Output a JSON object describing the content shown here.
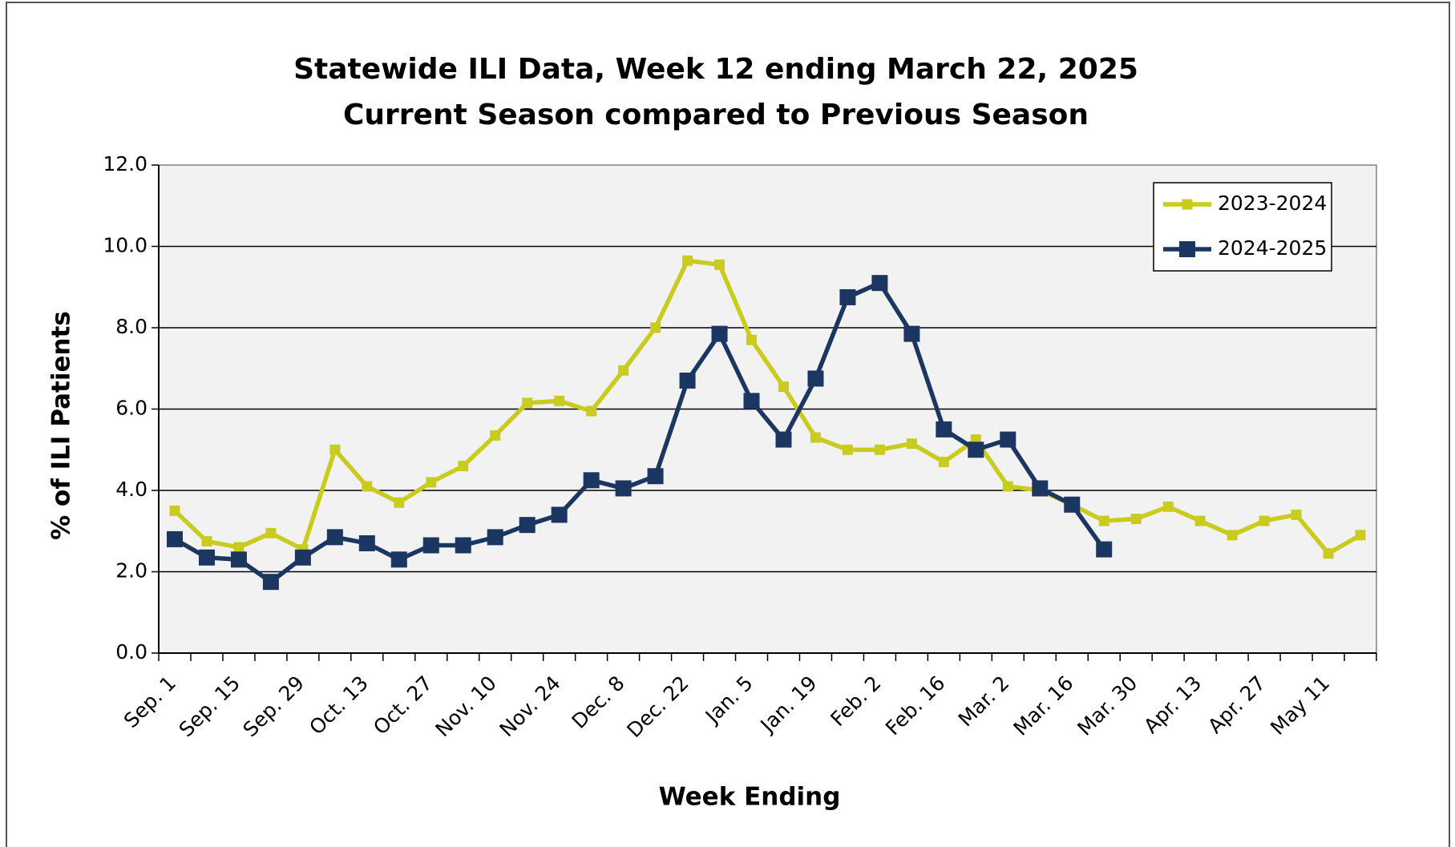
{
  "chart_data": {
    "type": "line",
    "title": [
      "Statewide ILI Data, Week 12 ending March 22, 2025",
      "Current Season compared to Previous Season"
    ],
    "x_label": "Week Ending",
    "y_label": "% of ILI Patients",
    "categories": [
      "Sep. 1",
      null,
      "Sep. 15",
      null,
      "Sep. 29",
      null,
      "Oct. 13",
      null,
      "Oct. 27",
      null,
      "Nov. 10",
      null,
      "Nov. 24",
      null,
      "Dec. 8",
      null,
      "Dec. 22",
      null,
      "Jan. 5",
      null,
      "Jan. 19",
      null,
      "Feb. 2",
      null,
      "Feb. 16",
      null,
      "Mar. 2",
      null,
      "Mar. 16",
      null,
      "Mar. 30",
      null,
      "Apr. 13",
      null,
      "Apr. 27",
      null,
      "May 11",
      null
    ],
    "series": [
      {
        "name": "2023-2024",
        "color": "#c9cc1f",
        "values": [
          3.5,
          2.75,
          2.6,
          2.95,
          2.55,
          5.0,
          4.1,
          3.7,
          4.2,
          4.6,
          5.35,
          6.15,
          6.2,
          5.95,
          6.95,
          8.0,
          9.65,
          9.55,
          7.7,
          6.55,
          5.3,
          5.0,
          5.0,
          5.15,
          4.7,
          5.25,
          4.1,
          4.0,
          3.65,
          3.25,
          3.3,
          3.6,
          3.25,
          2.9,
          3.25,
          3.4,
          2.45,
          2.9
        ]
      },
      {
        "name": "2024-2025",
        "color": "#1b3660",
        "values": [
          2.8,
          2.35,
          2.3,
          1.75,
          2.35,
          2.85,
          2.7,
          2.3,
          2.65,
          2.65,
          2.85,
          3.15,
          3.4,
          4.25,
          4.05,
          4.35,
          6.7,
          7.85,
          6.2,
          5.25,
          6.75,
          8.75,
          9.1,
          7.85,
          5.5,
          5.0,
          5.25,
          4.05,
          3.65,
          2.55,
          null,
          null,
          null,
          null,
          null,
          null,
          null,
          null
        ]
      }
    ],
    "ylim": [
      0,
      12
    ],
    "yticks": [
      {
        "value": 0,
        "label": "0.0"
      },
      {
        "value": 2,
        "label": "2.0"
      },
      {
        "value": 4,
        "label": "4.0"
      },
      {
        "value": 6,
        "label": "6.0"
      },
      {
        "value": 8,
        "label": "8.0"
      },
      {
        "value": 10,
        "label": "10.0"
      },
      {
        "value": 12,
        "label": "12.0"
      }
    ],
    "grid": true,
    "legend": "upper right"
  }
}
